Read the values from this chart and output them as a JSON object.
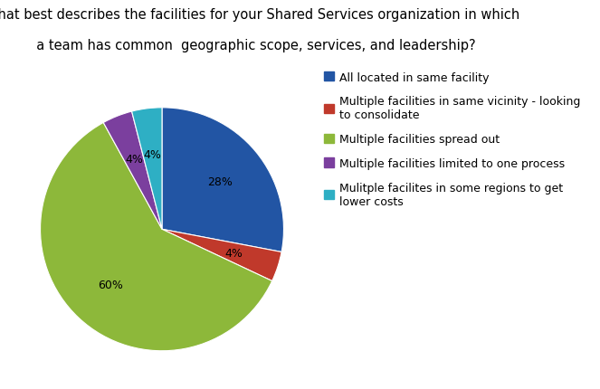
{
  "title_line1": "What best describes the facilities for your Shared Services organization in which",
  "title_line2": "  a team has common  geographic scope, services, and leadership?",
  "slices": [
    28,
    4,
    60,
    4,
    4
  ],
  "colors": [
    "#2255A4",
    "#C0392B",
    "#8DB83A",
    "#7B3F9E",
    "#2EAFC4"
  ],
  "labels_pct": [
    "28%",
    "4%",
    "60%",
    "4%",
    "4%"
  ],
  "legend_labels": [
    "All located in same facility",
    "Multiple facilities in same vicinity - looking\nto consolidate",
    "Multiple facilities spread out",
    "Multiple facilities limited to one process",
    "Mulitple facilites in some regions to get\nlower costs"
  ],
  "startangle": 90,
  "background_color": "#FFFFFF",
  "title_fontsize": 10.5,
  "pct_fontsize": 9,
  "legend_fontsize": 9
}
